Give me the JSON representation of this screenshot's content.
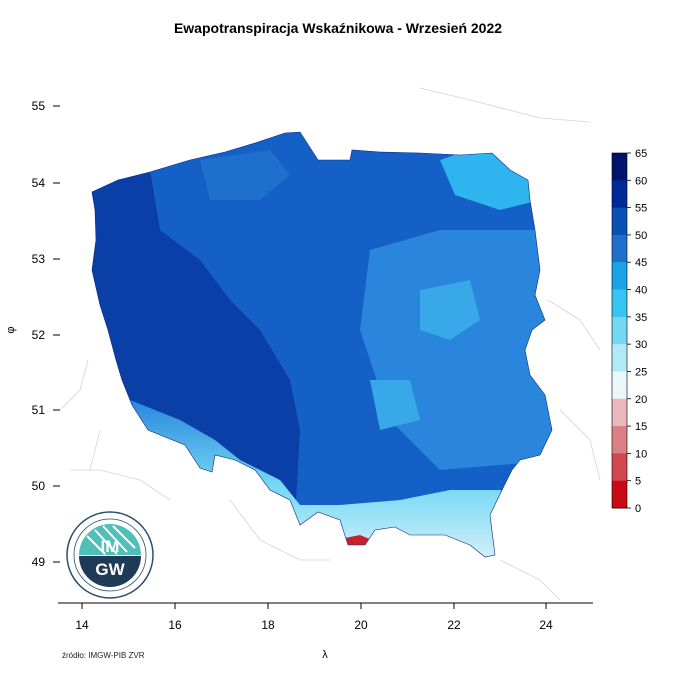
{
  "title": "Ewapotranspiracja Wskaźnikowa - Wrzesień 2022",
  "axis": {
    "x_label": "λ",
    "y_label": "φ",
    "x_ticks": [
      "14",
      "16",
      "18",
      "20",
      "22",
      "24"
    ],
    "y_ticks": [
      "55",
      "54",
      "53",
      "52",
      "51",
      "50",
      "49"
    ]
  },
  "legend": {
    "labels": [
      "65",
      "60",
      "55",
      "50",
      "45",
      "40",
      "35",
      "30",
      "25",
      "20",
      "15",
      "10",
      "5",
      "0"
    ],
    "colors": [
      "#00146e",
      "#002a9a",
      "#0a4fb4",
      "#1f6fcc",
      "#1aa3e6",
      "#38c4f0",
      "#74d8f4",
      "#b2e9f8",
      "#eaf7fb",
      "#eab7bd",
      "#dc8088",
      "#d24850",
      "#c80a14"
    ]
  },
  "logo": {
    "text_top": "IM",
    "text_bottom": "GW"
  },
  "source": "źródło: IMGW-PIB ZVR",
  "map_colors": {
    "west_dark": "#0a3fa8",
    "central": "#1460c6",
    "east_light": "#2a86dc",
    "northeast": "#2eb4ee",
    "mountains": "#a8e4f6",
    "tatra_red": "#c8202a"
  }
}
